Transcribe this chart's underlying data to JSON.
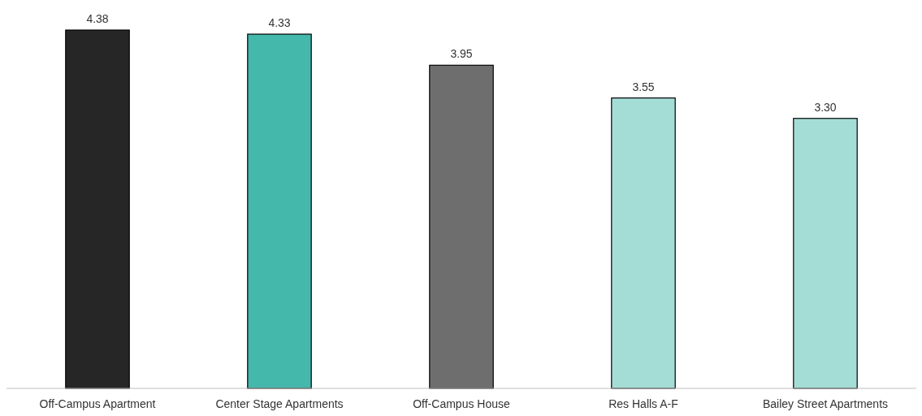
{
  "chart_data": {
    "type": "bar",
    "categories": [
      "Off-Campus Apartment",
      "Center Stage Apartments",
      "Off-Campus House",
      "Res Halls A-F",
      "Bailey Street Apartments"
    ],
    "values": [
      4.38,
      4.33,
      3.95,
      3.55,
      3.3
    ],
    "colors": [
      "#262626",
      "#44b8ab",
      "#6e6e6e",
      "#a3ddd6",
      "#a3ddd6"
    ],
    "value_labels": [
      "4.38",
      "4.33",
      "3.95",
      "3.55",
      "3.30"
    ]
  }
}
